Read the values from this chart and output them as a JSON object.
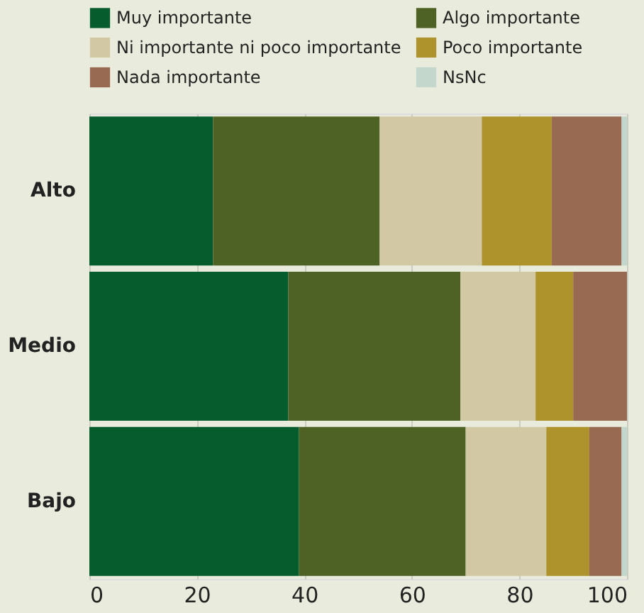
{
  "chart_data": {
    "type": "bar",
    "orientation": "horizontal",
    "stacked": true,
    "categories": [
      "Alto",
      "Medio",
      "Bajo"
    ],
    "series": [
      {
        "name": "Muy importante",
        "color": "#065c2c",
        "values": [
          23,
          37,
          39
        ]
      },
      {
        "name": "Algo importante",
        "color": "#4d6224",
        "values": [
          31,
          32,
          31
        ]
      },
      {
        "name": "Ni importante ni poco importante",
        "color": "#d2c9a4",
        "values": [
          19,
          14,
          15
        ]
      },
      {
        "name": "Poco importante",
        "color": "#ae922b",
        "values": [
          13,
          7,
          8
        ]
      },
      {
        "name": "Nada importante",
        "color": "#996a52",
        "values": [
          13,
          10,
          6
        ]
      },
      {
        "name": "NsNc",
        "color": "#c3d7cd",
        "values": [
          1,
          0,
          1
        ]
      }
    ],
    "xlim": [
      0,
      100
    ],
    "xticks": [
      0,
      20,
      40,
      60,
      80,
      100
    ],
    "grid": "x",
    "legend": "top"
  }
}
